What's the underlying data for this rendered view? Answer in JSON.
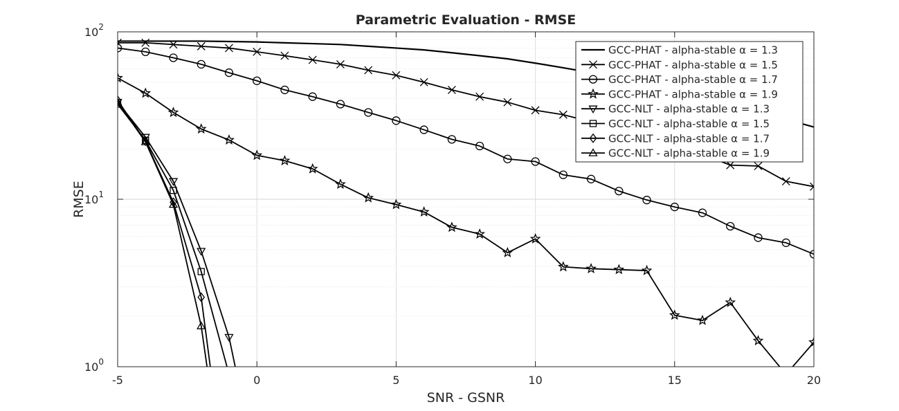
{
  "chart_data": {
    "type": "line",
    "title": "Parametric Evaluation - RMSE",
    "xlabel": "SNR - GSNR",
    "ylabel": "RMSE",
    "xlim": [
      -5,
      20
    ],
    "ylim": [
      1,
      100
    ],
    "yscale": "log",
    "grid": true,
    "x_ticks": [
      -5,
      0,
      5,
      10,
      15,
      20
    ],
    "y_ticks": [
      {
        "value": 1,
        "base": "10",
        "exp": "0"
      },
      {
        "value": 10,
        "base": "10",
        "exp": "1"
      },
      {
        "value": 100,
        "base": "10",
        "exp": "2"
      }
    ],
    "legend_position": "top-right",
    "series": [
      {
        "name": "GCC-PHAT - alpha-stable α = 1.3",
        "marker": "none",
        "x": [
          -5,
          -4,
          -3,
          -2,
          -1,
          0,
          1,
          2,
          3,
          4,
          5,
          6,
          7,
          8,
          9,
          10,
          11,
          12,
          13,
          14,
          15,
          16,
          17,
          18,
          19,
          20
        ],
        "y": [
          88,
          88,
          88,
          88,
          87.5,
          87,
          86,
          85,
          84,
          82,
          80,
          78,
          75,
          72,
          69,
          65,
          61,
          57,
          53,
          48,
          44,
          40,
          36,
          33,
          30,
          27
        ]
      },
      {
        "name": "GCC-PHAT - alpha-stable α = 1.5",
        "marker": "x",
        "x": [
          -5,
          -4,
          -3,
          -2,
          -1,
          0,
          1,
          2,
          3,
          4,
          5,
          6,
          7,
          8,
          9,
          10,
          11,
          12,
          13,
          14,
          15,
          16,
          17,
          18,
          19,
          20
        ],
        "y": [
          86,
          86,
          84,
          82,
          80,
          76,
          72,
          68,
          64,
          59,
          55,
          50,
          45,
          41,
          38,
          34,
          32,
          29,
          26,
          24,
          21,
          18.5,
          16,
          15.8,
          12.8,
          11.9
        ]
      },
      {
        "name": "GCC-PHAT - alpha-stable α = 1.7",
        "marker": "circle",
        "x": [
          -5,
          -4,
          -3,
          -2,
          -1,
          0,
          1,
          2,
          3,
          4,
          5,
          6,
          7,
          8,
          9,
          10,
          11,
          12,
          13,
          14,
          15,
          16,
          17,
          18,
          19,
          20
        ],
        "y": [
          80,
          76,
          70,
          64,
          57,
          51,
          45,
          41,
          37,
          33,
          29.5,
          26,
          22.8,
          20.8,
          17.4,
          16.8,
          14,
          13.2,
          11.2,
          9.9,
          9.0,
          8.3,
          6.9,
          5.9,
          5.5,
          4.7
        ]
      },
      {
        "name": "GCC-PHAT - alpha-stable α = 1.9",
        "marker": "star",
        "x": [
          -5,
          -4,
          -3,
          -2,
          -1,
          0,
          1,
          2,
          3,
          4,
          5,
          6,
          7,
          8,
          9,
          10,
          11,
          12,
          13,
          14,
          15,
          16,
          17,
          18,
          19,
          20
        ],
        "y": [
          53,
          43,
          33,
          26.3,
          22.6,
          18.3,
          17,
          15.2,
          12.3,
          10.2,
          9.3,
          8.4,
          6.8,
          6.2,
          4.8,
          5.8,
          3.95,
          3.85,
          3.8,
          3.75,
          2.03,
          1.89,
          2.42,
          1.43,
          0.9,
          1.4
        ]
      },
      {
        "name": "GCC-NLT - alpha-stable α = 1.3",
        "marker": "triangle-down",
        "x": [
          -5,
          -4,
          -3,
          -2,
          -1,
          -0.5
        ],
        "y": [
          38,
          23.5,
          12.8,
          4.9,
          1.5,
          0.6
        ]
      },
      {
        "name": "GCC-NLT - alpha-stable α = 1.5",
        "marker": "square",
        "x": [
          -5,
          -4,
          -3,
          -2,
          -1
        ],
        "y": [
          37,
          22.5,
          11.3,
          3.7,
          0.9
        ]
      },
      {
        "name": "GCC-NLT - alpha-stable α = 1.7",
        "marker": "diamond",
        "x": [
          -5,
          -4,
          -3,
          -2,
          -1.5
        ],
        "y": [
          39,
          22.2,
          9.6,
          2.6,
          0.6
        ]
      },
      {
        "name": "GCC-NLT - alpha-stable α = 1.9",
        "marker": "triangle-up",
        "x": [
          -5,
          -4,
          -3,
          -2,
          -1.6
        ],
        "y": [
          38,
          22,
          9.3,
          1.75,
          0.6
        ]
      }
    ]
  }
}
